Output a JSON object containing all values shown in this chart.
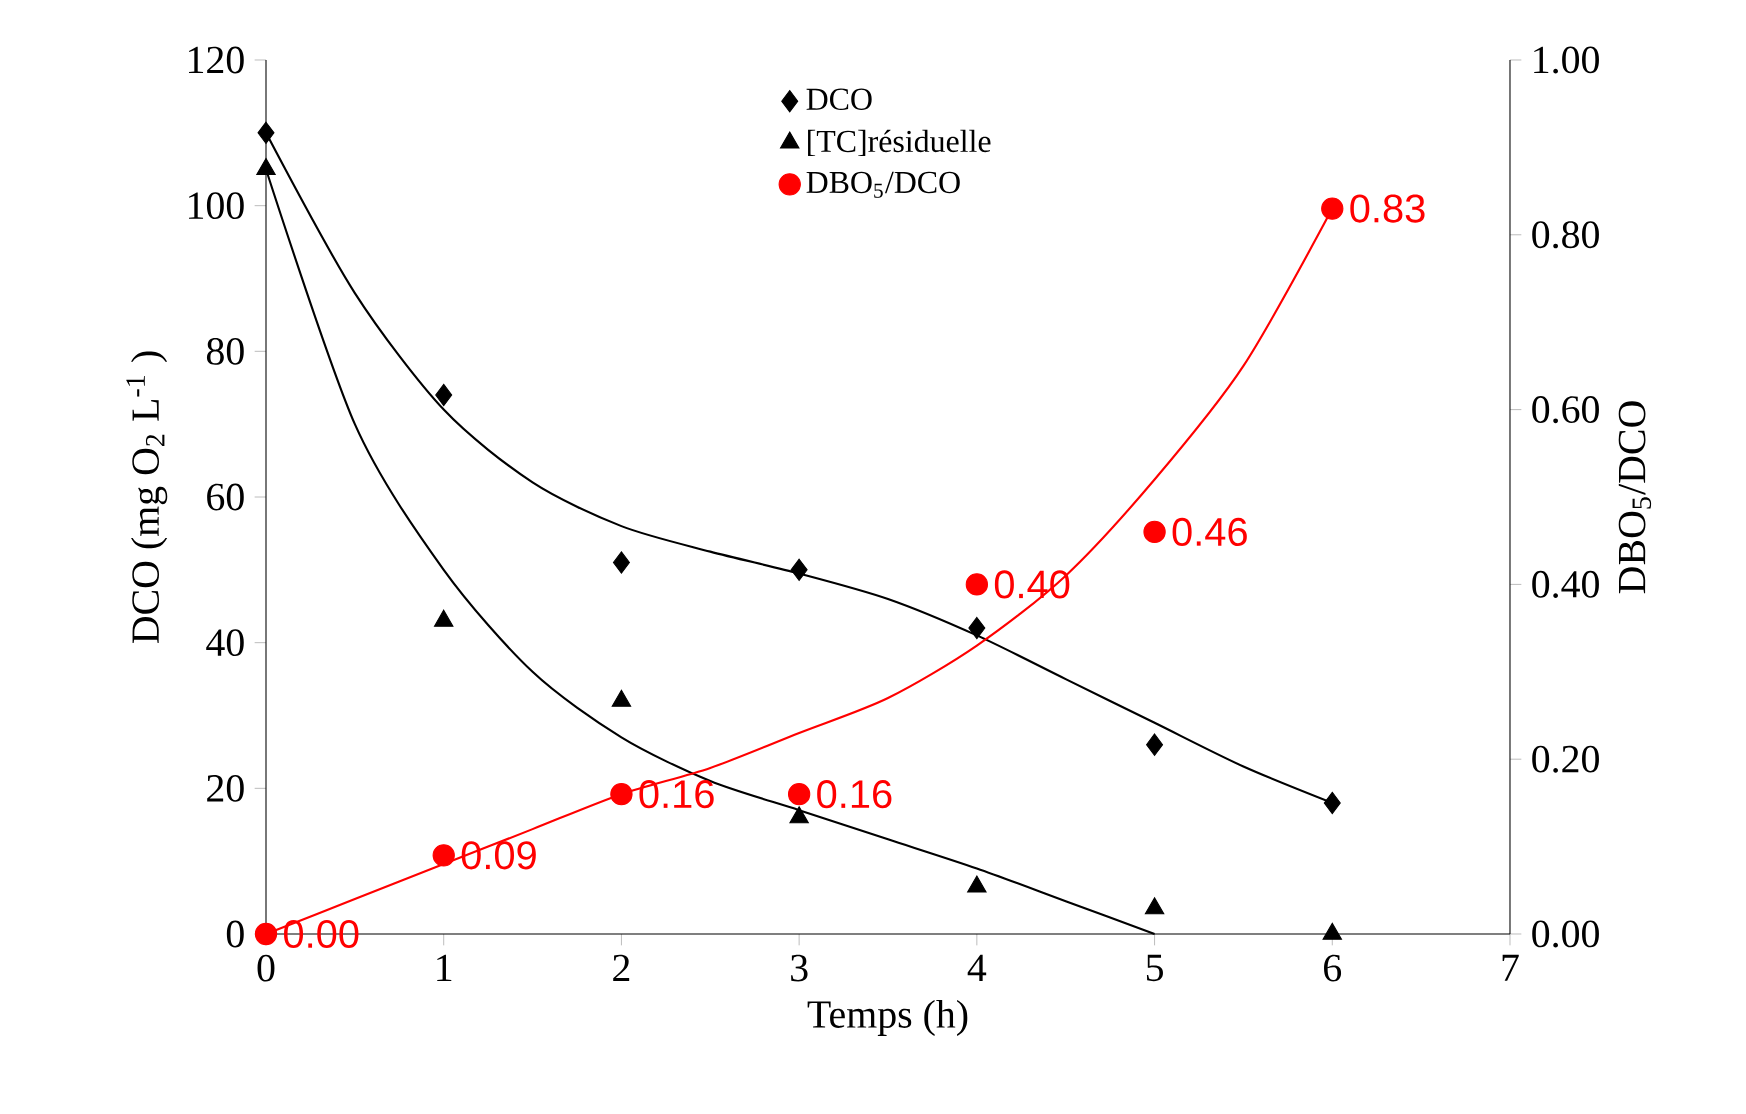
{
  "chart_data": {
    "type": "scatter",
    "xlabel": "Temps (h)",
    "ylabel": "DCO (mg O$_{2}$ L$^{-1}$ )",
    "y2label": "DBO$_{5}$/DCO",
    "xlim": [
      0,
      7
    ],
    "xticks": [
      0,
      1,
      2,
      3,
      4,
      5,
      6,
      7
    ],
    "ylim": [
      0,
      120
    ],
    "yticks": [
      0,
      20,
      40,
      60,
      80,
      100,
      120
    ],
    "y2lim": [
      0,
      1
    ],
    "y2ticks": [
      {
        "value": 0,
        "label": "0.00"
      },
      {
        "value": 0.2,
        "label": "0.20"
      },
      {
        "value": 0.4,
        "label": "0.40"
      },
      {
        "value": 0.6,
        "label": "0.60"
      },
      {
        "value": 0.8,
        "label": "0.80"
      },
      {
        "value": 1,
        "label": "1.00"
      }
    ],
    "legend": "top",
    "series": [
      {
        "name": "DCO",
        "marker": "diamond",
        "color": "#000000",
        "x": [
          0,
          1,
          2,
          3,
          4,
          5,
          6
        ],
        "values": [
          110,
          74,
          51,
          50,
          42,
          26,
          18
        ]
      },
      {
        "name": "[TC]résiduelle",
        "marker": "triangle",
        "color": "#000000",
        "x": [
          0,
          1,
          2,
          3,
          4,
          5,
          6
        ],
        "values": [
          105,
          43,
          32,
          16,
          6.5,
          3.5,
          0
        ]
      },
      {
        "name": "DBO$_{5}$/DCO",
        "marker": "circle",
        "axis": "y2",
        "color": "#ff0000",
        "x": [
          0,
          1,
          2,
          3,
          4,
          5,
          6
        ],
        "values": [
          0.0,
          0.09,
          0.16,
          0.16,
          0.4,
          0.46,
          0.83
        ],
        "value_labels": [
          "0.00",
          "0.09",
          "0.16",
          "0.16",
          "0.40",
          "0.46",
          "0.83"
        ]
      },
      {
        "type": "line",
        "color": "#000000",
        "x": [
          0,
          0.5,
          1,
          1.5,
          2,
          2.5,
          3,
          3.5,
          4,
          4.5,
          5,
          5.5,
          6
        ],
        "values": [
          110,
          88,
          72,
          62,
          56,
          52.5,
          49.5,
          46,
          41,
          35,
          29,
          23,
          18
        ]
      },
      {
        "type": "line",
        "color": "#000000",
        "x": [
          0,
          0.5,
          1,
          1.5,
          2,
          2.5,
          3,
          3.5,
          4,
          4.5,
          5
        ],
        "values": [
          105,
          70,
          50,
          36,
          27,
          21,
          17,
          13,
          9,
          4.5,
          0
        ]
      },
      {
        "type": "line",
        "axis": "y2",
        "color": "#ff0000",
        "x": [
          0,
          0.5,
          1,
          1.5,
          2,
          2.5,
          3,
          3.5,
          4,
          4.5,
          5,
          5.5,
          6
        ],
        "values": [
          0,
          0.04,
          0.08,
          0.12,
          0.16,
          0.19,
          0.23,
          0.27,
          0.33,
          0.41,
          0.52,
          0.65,
          0.83
        ]
      }
    ]
  }
}
